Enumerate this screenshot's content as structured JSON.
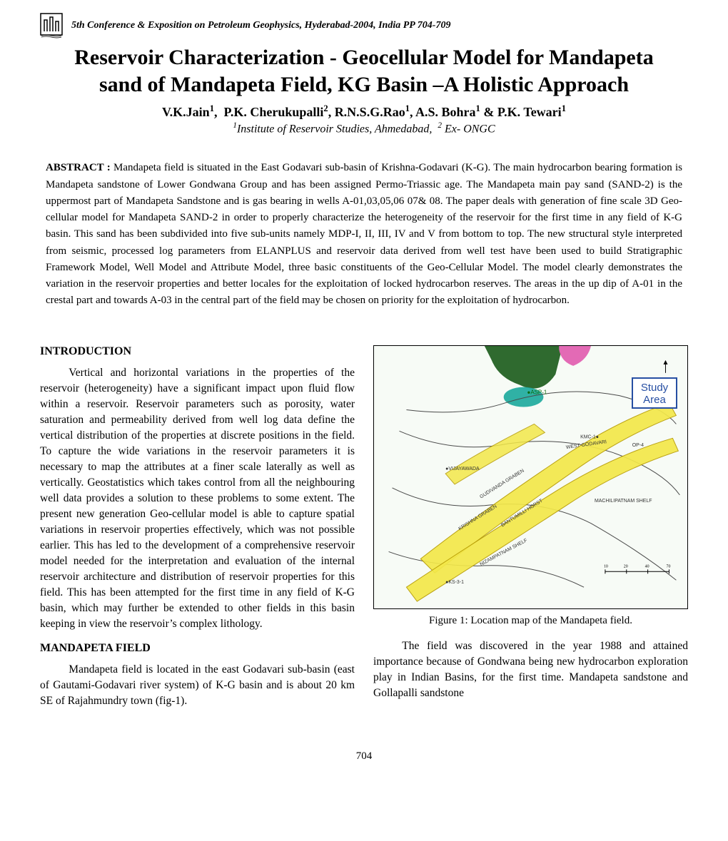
{
  "header": {
    "conference_line": "5th Conference & Exposition on Petroleum Geophysics, Hyderabad-2004, India  PP 704-709"
  },
  "title": "Reservoir Characterization - Geocellular Model for Mandapeta sand of Mandapeta Field, KG Basin –A Holistic Approach",
  "authors_html": "V.K.Jain<sup>1</sup>,  P.K. Cherukupalli<sup>2</sup>, R.N.S.G.Rao<sup>1</sup>, A.S. Bohra<sup>1</sup> & P.K. Tewari<sup>1</sup>",
  "affiliation_html": "<sup>1</sup>Institute of Reservoir Studies, Ahmedabad,  <sup>2</sup> Ex- ONGC",
  "abstract": {
    "label": "ABSTRACT : ",
    "text": "Mandapeta field is situated in the East Godavari sub-basin of Krishna-Godavari (K-G). The main hydrocarbon bearing formation is Mandapeta sandstone of Lower Gondwana Group and has been assigned Permo-Triassic age. The Mandapeta main pay sand (SAND-2) is the uppermost part of Mandapeta Sandstone and is gas bearing in wells A-01,03,05,06 07& 08.  The paper deals with generation of fine scale 3D Geo-cellular model for Mandapeta SAND-2 in order to properly characterize the heterogeneity of the reservoir for the first time in any field of K-G basin. This sand has been subdivided into five sub-units namely MDP-I, II, III, IV and V from bottom to top. The new structural style interpreted from seismic, processed log parameters from ELANPLUS and reservoir data derived from well test have been used to build Stratigraphic Framework Model, Well Model and Attribute Model, three basic constituents of the Geo-Cellular Model.  The model clearly demonstrates the variation in the reservoir properties and better locales for the exploitation of locked hydrocarbon reserves. The areas in the up dip of A-01 in the crestal part and towards A-03 in the central part of the field may be chosen on priority for the exploitation of hydrocarbon."
  },
  "body": {
    "intro_head": "INTRODUCTION",
    "intro_p1": "Vertical and horizontal variations in the properties of the reservoir (heterogeneity) have a significant impact upon fluid flow within a reservoir. Reservoir parameters such as porosity, water saturation and permeability  derived from well log data define the vertical distribution of the properties at discrete positions in the field. To capture the wide variations in the reservoir parameters it is necessary to map the attributes at a finer scale laterally as well as vertically. Geostatistics which takes control from all the neighbouring well data provides a solution to these problems to some extent. The present new generation Geo-cellular model is able to capture spatial variations in reservoir properties effectively, which was not possible earlier. This has led to the development of a comprehensive reservoir model needed for the interpretation and evaluation of the  internal reservoir architecture and distribution of  reservoir properties for this field.  This has been attempted for the first time in any field of K-G basin, which may further be extended to other fields in this basin keeping in view the reservoir’s complex lithology.",
    "field_head": "MANDAPETA FIELD",
    "field_p1": "Mandapeta field is located  in the east Godavari sub-basin (east of Gautami-Godavari river system) of K-G basin and is about 20 km SE of Rajahmundry town (fig-1).",
    "field_p2": "The field was discovered in the year 1988 and attained importance because of Gondwana being new hydrocarbon exploration play in Indian Basins, for the first time. Mandapeta sandstone and Gollapalli sandstone"
  },
  "figure": {
    "caption": "Figure 1:  Location map of the Mandapeta field.",
    "study_label": "Study Area",
    "colors": {
      "bg": "#f7fbf6",
      "coast": "#2f6a2f",
      "pink": "#e36ab5",
      "teal": "#1aa89c",
      "graben_fill": "#f3e84a",
      "graben_stroke": "#b59a00",
      "outline": "#4a4a4a",
      "study_border": "#274fa3",
      "study_text": "#274fa3"
    }
  },
  "page_number": "704"
}
